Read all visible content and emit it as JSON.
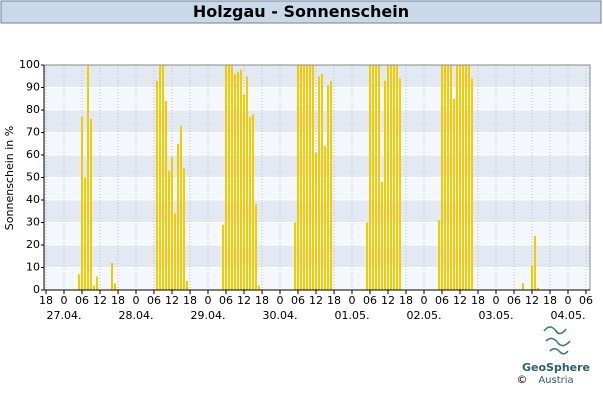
{
  "chart_data": {
    "type": "bar",
    "title": "Holzgau - Sonnenschein",
    "y_label": "Sonnenschein in %",
    "color": "#f2cc00",
    "ylim": [
      0,
      100
    ],
    "yticks": [
      0,
      10,
      20,
      30,
      40,
      50,
      60,
      70,
      80,
      90,
      100
    ],
    "grid": true,
    "categories": [
      "18",
      null,
      null,
      null,
      null,
      null,
      "0",
      null,
      null,
      null,
      null,
      null,
      "06",
      null,
      null,
      null,
      null,
      null,
      "12",
      null,
      null,
      null,
      null,
      null,
      "18",
      null,
      null,
      null,
      null,
      null,
      "0",
      null,
      null,
      null,
      null,
      null,
      "06",
      null,
      null,
      null,
      null,
      null,
      "12",
      null,
      null,
      null,
      null,
      null,
      "18",
      null,
      null,
      null,
      null,
      null,
      "0",
      null,
      null,
      null,
      null,
      null,
      "06",
      null,
      null,
      null,
      null,
      null,
      "12",
      null,
      null,
      null,
      null,
      null,
      "18",
      null,
      null,
      null,
      null,
      null,
      "0",
      null,
      null,
      null,
      null,
      null,
      "06",
      null,
      null,
      null,
      null,
      null,
      "12",
      null,
      null,
      null,
      null,
      null,
      "18",
      null,
      null,
      null,
      null,
      null,
      "0",
      null,
      null,
      null,
      null,
      null,
      "06",
      null,
      null,
      null,
      null,
      null,
      "12",
      null,
      null,
      null,
      null,
      null,
      "18",
      null,
      null,
      null,
      null,
      null,
      "0",
      null,
      null,
      null,
      null,
      null,
      "06",
      null,
      null,
      null,
      null,
      null,
      "12",
      null,
      null,
      null,
      null,
      null,
      "18",
      null,
      null,
      null,
      null,
      null,
      "0",
      null,
      null,
      null,
      null,
      null,
      "06",
      null,
      null,
      null,
      null,
      null,
      "12",
      null,
      null,
      null,
      null,
      null,
      "18",
      null,
      null,
      null,
      null,
      null,
      "0",
      null,
      null,
      null,
      null,
      null,
      "06"
    ],
    "dates": [
      null,
      null,
      null,
      null,
      null,
      null,
      "27.04.",
      null,
      null,
      null,
      null,
      null,
      null,
      null,
      null,
      null,
      null,
      null,
      null,
      null,
      null,
      null,
      null,
      null,
      null,
      null,
      null,
      null,
      null,
      null,
      "28.04.",
      null,
      null,
      null,
      null,
      null,
      null,
      null,
      null,
      null,
      null,
      null,
      null,
      null,
      null,
      null,
      null,
      null,
      null,
      null,
      null,
      null,
      null,
      null,
      "29.04.",
      null,
      null,
      null,
      null,
      null,
      null,
      null,
      null,
      null,
      null,
      null,
      null,
      null,
      null,
      null,
      null,
      null,
      null,
      null,
      null,
      null,
      null,
      null,
      "30.04.",
      null,
      null,
      null,
      null,
      null,
      null,
      null,
      null,
      null,
      null,
      null,
      null,
      null,
      null,
      null,
      null,
      null,
      null,
      null,
      null,
      null,
      null,
      null,
      "01.05.",
      null,
      null,
      null,
      null,
      null,
      null,
      null,
      null,
      null,
      null,
      null,
      null,
      null,
      null,
      null,
      null,
      null,
      null,
      null,
      null,
      null,
      null,
      null,
      "02.05.",
      null,
      null,
      null,
      null,
      null,
      null,
      null,
      null,
      null,
      null,
      null,
      null,
      null,
      null,
      null,
      null,
      null,
      null,
      null,
      null,
      null,
      null,
      null,
      "03.05.",
      null,
      null,
      null,
      null,
      null,
      null,
      null,
      null,
      null,
      null,
      null,
      null,
      null,
      null,
      null,
      null,
      null,
      null,
      null,
      null,
      null,
      null,
      null,
      "04.05.",
      null,
      null,
      null,
      null,
      null,
      null
    ],
    "values": [
      0,
      0,
      0,
      0,
      0,
      0,
      0,
      0,
      0,
      0,
      0,
      7,
      77,
      50,
      100,
      76,
      2,
      6,
      0,
      0,
      0,
      0,
      12,
      3,
      0,
      0,
      0,
      0,
      0,
      0,
      0,
      0,
      0,
      0,
      0,
      0,
      0,
      93,
      100,
      100,
      84,
      53,
      59,
      34,
      65,
      73,
      54,
      4,
      0,
      0,
      0,
      0,
      0,
      0,
      0,
      0,
      0,
      0,
      0,
      29,
      100,
      100,
      100,
      96,
      97,
      98,
      87,
      95,
      77,
      78,
      38,
      2,
      0,
      0,
      0,
      0,
      0,
      0,
      0,
      0,
      0,
      0,
      0,
      30,
      100,
      100,
      100,
      100,
      100,
      100,
      61,
      95,
      96,
      64,
      91,
      93,
      0,
      0,
      0,
      0,
      0,
      0,
      0,
      0,
      0,
      0,
      0,
      30,
      100,
      100,
      100,
      100,
      48,
      93,
      100,
      100,
      100,
      100,
      94,
      0,
      0,
      0,
      0,
      0,
      0,
      0,
      0,
      0,
      0,
      0,
      0,
      31,
      100,
      100,
      100,
      100,
      85,
      100,
      100,
      100,
      100,
      100,
      94,
      0,
      0,
      0,
      0,
      0,
      0,
      0,
      0,
      0,
      0,
      0,
      0,
      0,
      0,
      0,
      0,
      3,
      0,
      0,
      11,
      24,
      1,
      0,
      0,
      0,
      0,
      0,
      0,
      0,
      0,
      0,
      0,
      0,
      0,
      0,
      0,
      0,
      0
    ]
  },
  "footer": {
    "logo": "GeoSphere",
    "logo_sub": "Austria",
    "copyright": "©"
  }
}
